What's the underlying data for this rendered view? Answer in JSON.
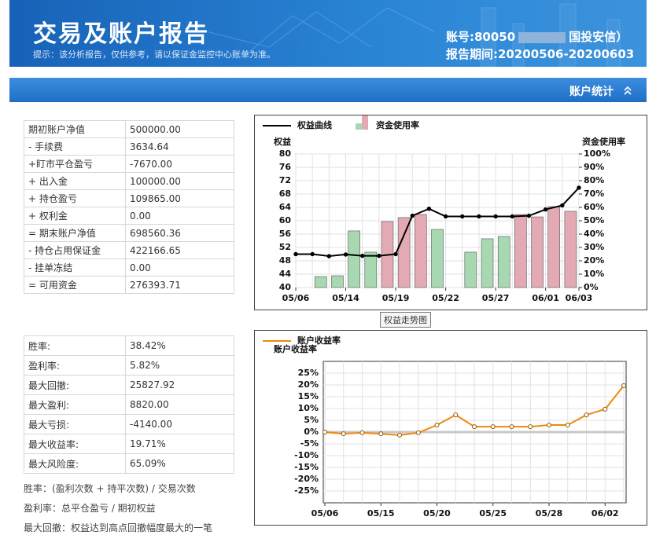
{
  "header": {
    "title": "交易及账户报告",
    "notice": "提示：该分析报告，仅供参考，请以保证金监控中心账单为准。",
    "account": "账号:80050",
    "broker": "国投安信）",
    "period": "报告期间:20200506-20200603"
  },
  "section": {
    "title": "账户统计"
  },
  "account_table": {
    "rows": [
      [
        "期初账户净值",
        "500000.00"
      ],
      [
        "- 手续费",
        "3634.64"
      ],
      [
        "+盯市平仓盈亏",
        "-7670.00"
      ],
      [
        "+ 出入金",
        "100000.00"
      ],
      [
        "+ 持仓盈亏",
        "109865.00"
      ],
      [
        "+ 权利金",
        "0.00"
      ],
      [
        "= 期末账户净值",
        "698560.36"
      ],
      [
        "- 持仓占用保证金",
        "422166.65"
      ],
      [
        "- 挂单冻结",
        "0.00"
      ],
      [
        "= 可用资金",
        "276393.71"
      ]
    ]
  },
  "stats_table": {
    "rows": [
      [
        "胜率:",
        "38.42%"
      ],
      [
        "盈利率:",
        "5.82%"
      ],
      [
        "最大回撤:",
        "25827.92"
      ],
      [
        "最大盈利:",
        "8820.00"
      ],
      [
        "最大亏损:",
        "-4140.00"
      ],
      [
        "最大收益率:",
        "19.71%"
      ],
      [
        "最大风险度:",
        "65.09%"
      ]
    ]
  },
  "notes": [
    "胜率：(盈利次数 + 持平次数) / 交易次数",
    "盈利率：总平仓盈亏 / 期初权益",
    "最大回撤：权益达到高点回撤幅度最大的一笔"
  ],
  "chart_data": [
    {
      "type": "line-bar",
      "tooltip": "权益走势图",
      "y_label": "权益",
      "y2_label": "资金使用率",
      "grid": true,
      "categories": [
        "05/06",
        null,
        null,
        "05/14",
        null,
        null,
        "05/19",
        null,
        null,
        "05/22",
        null,
        null,
        "05/27",
        null,
        null,
        "06/01",
        null,
        "06/03"
      ],
      "series": [
        {
          "name": "权益曲线",
          "type": "line",
          "color": "#000000",
          "values": [
            50.0,
            50.0,
            49.4,
            49.9,
            49.5,
            49.5,
            50.0,
            61.5,
            63.6,
            61.3,
            61.3,
            61.3,
            61.3,
            61.3,
            61.5,
            63.4,
            64.6,
            69.9
          ]
        },
        {
          "name": "资金使用率",
          "type": "bar",
          "axis": "y2",
          "values": [
            null,
            8.2,
            8.8,
            42.4,
            26.5,
            49.4,
            52.4,
            54.7,
            43.5,
            null,
            26.5,
            36.5,
            38.2,
            54.7,
            52.9,
            60.6,
            57.1,
            null
          ],
          "colors": [
            null,
            "#a8d8b2",
            "#a8d8b2",
            "#a8d8b2",
            "#a8d8b2",
            "#e3a9b4",
            "#e3a9b4",
            "#e3a9b4",
            "#a8d8b2",
            null,
            "#a8d8b2",
            "#a8d8b2",
            "#a8d8b2",
            "#e3a9b4",
            "#e3a9b4",
            "#e3a9b4",
            "#e3a9b4",
            null
          ]
        }
      ],
      "ylim": [
        40,
        80
      ],
      "yticks": [
        40,
        44,
        48,
        52,
        56,
        60,
        64,
        68,
        72,
        76,
        80
      ],
      "y2lim": [
        0,
        100
      ],
      "y2ticks": [
        {
          "value": 0,
          "label": "0%"
        },
        {
          "value": 10,
          "label": "10%"
        },
        {
          "value": 20,
          "label": "20%"
        },
        {
          "value": 30,
          "label": "30%"
        },
        {
          "value": 40,
          "label": "40%"
        },
        {
          "value": 50,
          "label": "50%"
        },
        {
          "value": 60,
          "label": "60%"
        },
        {
          "value": 70,
          "label": "70%"
        },
        {
          "value": 80,
          "label": "80%"
        },
        {
          "value": 90,
          "label": "90%"
        },
        {
          "value": 100,
          "label": "100%"
        }
      ]
    },
    {
      "type": "line",
      "y_label": "账户收益率",
      "grid": true,
      "zero_line": true,
      "categories": [
        "05/06",
        null,
        null,
        "05/15",
        null,
        null,
        "05/20",
        null,
        null,
        "05/25",
        null,
        null,
        "05/28",
        null,
        null,
        "06/02",
        null
      ],
      "series": [
        {
          "name": "账户收益率",
          "type": "line",
          "color": "#f0890a",
          "values": [
            0,
            -0.7,
            -0.3,
            -0.7,
            -1.3,
            -0.3,
            3.0,
            7.3,
            2.3,
            2.3,
            2.3,
            2.3,
            3.0,
            3.0,
            7.3,
            9.7,
            19.7
          ]
        }
      ],
      "ylim": [
        -30,
        30
      ],
      "yticks": [
        {
          "value": -25,
          "label": "-25%"
        },
        {
          "value": -20,
          "label": "-20%"
        },
        {
          "value": -15,
          "label": "-15%"
        },
        {
          "value": -10,
          "label": "-10%"
        },
        {
          "value": -5,
          "label": "-5%"
        },
        {
          "value": 0,
          "label": "0%"
        },
        {
          "value": 5,
          "label": "5%"
        },
        {
          "value": 10,
          "label": "10%"
        },
        {
          "value": 15,
          "label": "15%"
        },
        {
          "value": 20,
          "label": "20%"
        },
        {
          "value": 25,
          "label": "25%"
        }
      ]
    }
  ]
}
